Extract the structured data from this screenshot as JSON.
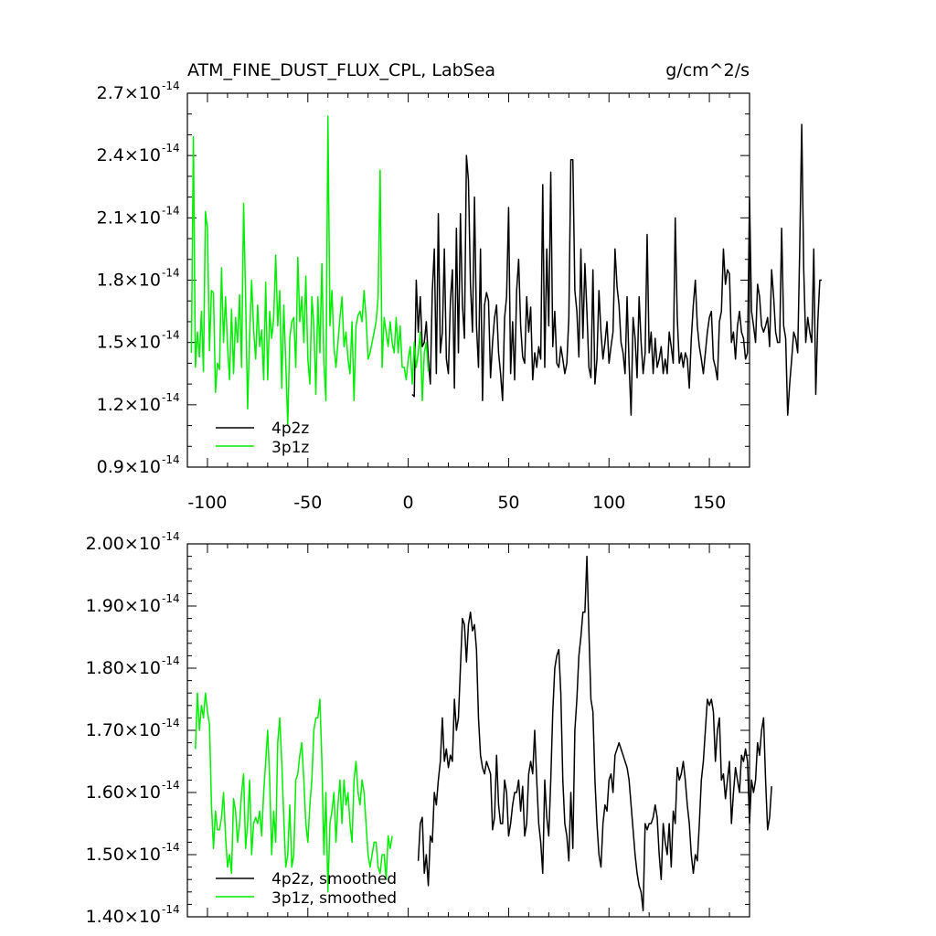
{
  "colors": {
    "series_a": "#000000",
    "series_b": "#00ee00",
    "axis": "#000000",
    "background": "#ffffff"
  },
  "chart_data": [
    {
      "type": "line",
      "title": "ATM_FINE_DUST_FLUX_CPL, LabSea",
      "units": "g/cm^2/s",
      "xlabel": "",
      "ylabel": "",
      "xlim": [
        -110,
        170
      ],
      "ylim": [
        9e-15,
        2.7e-14
      ],
      "grid": false,
      "legend_position": "bottom-left",
      "x_ticks": [
        {
          "value": -100,
          "label": "-100"
        },
        {
          "value": -50,
          "label": "-50"
        },
        {
          "value": 0,
          "label": "0"
        },
        {
          "value": 50,
          "label": "50"
        },
        {
          "value": 100,
          "label": "100"
        },
        {
          "value": 150,
          "label": "150"
        }
      ],
      "y_ticks": [
        {
          "value": 9e-15,
          "mantissa": "0.9",
          "exponent": "-14"
        },
        {
          "value": 1.2e-14,
          "mantissa": "1.2",
          "exponent": "-14"
        },
        {
          "value": 1.5e-14,
          "mantissa": "1.5",
          "exponent": "-14"
        },
        {
          "value": 1.8e-14,
          "mantissa": "1.8",
          "exponent": "-14"
        },
        {
          "value": 2.1e-14,
          "mantissa": "2.1",
          "exponent": "-14"
        },
        {
          "value": 2.4e-14,
          "mantissa": "2.4",
          "exponent": "-14"
        },
        {
          "value": 2.7e-14,
          "mantissa": "2.7",
          "exponent": "-14"
        }
      ],
      "series": [
        {
          "name": "4p2z",
          "color": "#000000",
          "x_start": 2,
          "x_step": 1,
          "values": [
            1.25e-14,
            1.24e-14,
            1.8e-14,
            1.55e-14,
            1.72e-14,
            1.48e-14,
            1.5e-14,
            1.6e-14,
            1.42e-14,
            1.3e-14,
            1.75e-14,
            1.95e-14,
            1.35e-14,
            2.12e-14,
            1.45e-14,
            1.55e-14,
            1.95e-14,
            1.42e-14,
            1.35e-14,
            1.7e-14,
            1.85e-14,
            1.28e-14,
            2.05e-14,
            1.45e-14,
            2.12e-14,
            1.68e-14,
            1.52e-14,
            2.4e-14,
            2.28e-14,
            1.78e-14,
            1.55e-14,
            2.2e-14,
            1.58e-14,
            1.38e-14,
            1.95e-14,
            1.22e-14,
            1.68e-14,
            1.74e-14,
            1.7e-14,
            1.33e-14,
            1.5e-14,
            1.62e-14,
            1.68e-14,
            1.45e-14,
            1.35e-14,
            1.22e-14,
            1.62e-14,
            1.72e-14,
            2.15e-14,
            1.35e-14,
            1.6e-14,
            1.32e-14,
            1.75e-14,
            1.9e-14,
            1.58e-14,
            1.43e-14,
            1.4e-14,
            1.72e-14,
            1.55e-14,
            1.67e-14,
            1.32e-14,
            1.45e-14,
            1.38e-14,
            1.48e-14,
            1.42e-14,
            2.26e-14,
            1.38e-14,
            1.95e-14,
            1.58e-14,
            2.32e-14,
            1.48e-14,
            1.65e-14,
            1.4e-14,
            1.38e-14,
            1.48e-14,
            1.42e-14,
            1.35e-14,
            1.4e-14,
            1.62e-14,
            2.38e-14,
            2.38e-14,
            1.75e-14,
            1.65e-14,
            1.43e-14,
            1.95e-14,
            1.52e-14,
            1.88e-14,
            1.65e-14,
            1.38e-14,
            1.33e-14,
            1.85e-14,
            1.3e-14,
            1.42e-14,
            1.75e-14,
            1.55e-14,
            1.42e-14,
            1.5e-14,
            1.6e-14,
            1.4e-14,
            1.48e-14,
            1.55e-14,
            1.95e-14,
            1.77e-14,
            1.68e-14,
            1.5e-14,
            1.45e-14,
            1.35e-14,
            1.72e-14,
            1.4e-14,
            1.15e-14,
            1.62e-14,
            1.52e-14,
            1.33e-14,
            1.72e-14,
            1.5e-14,
            1.35e-14,
            1.45e-14,
            2.02e-14,
            1.45e-14,
            1.55e-14,
            1.35e-14,
            1.52e-14,
            1.38e-14,
            1.42e-14,
            1.48e-14,
            1.35e-14,
            1.42e-14,
            1.35e-14,
            1.55e-14,
            1.48e-14,
            1.4e-14,
            2.1e-14,
            1.62e-14,
            1.4e-14,
            1.45e-14,
            1.38e-14,
            1.45e-14,
            1.42e-14,
            1.28e-14,
            1.52e-14,
            1.68e-14,
            1.8e-14,
            1.58e-14,
            1.48e-14,
            1.42e-14,
            1.35e-14,
            1.45e-14,
            1.55e-14,
            1.62e-14,
            1.65e-14,
            1.42e-14,
            1.38e-14,
            1.32e-14,
            1.6e-14,
            1.65e-14,
            1.95e-14,
            1.78e-14,
            1.85e-14,
            1.83e-14,
            1.5e-14,
            1.55e-14,
            1.42e-14,
            1.58e-14,
            1.65e-14,
            1.55e-14,
            1.52e-14,
            1.42e-14,
            1.45e-14,
            2.2e-14,
            1.65e-14,
            1.58e-14,
            1.5e-14,
            1.78e-14,
            1.72e-14,
            1.58e-14,
            1.55e-14,
            1.58e-14,
            1.62e-14,
            1.48e-14,
            1.85e-14,
            1.72e-14,
            1.55e-14,
            1.5e-14,
            1.5e-14,
            2.05e-14,
            1.58e-14,
            1.52e-14,
            1.15e-14,
            1.3e-14,
            1.42e-14,
            1.55e-14,
            1.52e-14,
            1.45e-14,
            1.95e-14,
            2.55e-14,
            1.85e-14,
            1.5e-14,
            1.62e-14,
            1.55e-14,
            1.5e-14,
            1.95e-14,
            1.25e-14,
            1.6e-14,
            1.8e-14,
            1.8e-14
          ]
        },
        {
          "name": "3p1z",
          "color": "#00ee00",
          "x_start": -108,
          "x_step": 1,
          "values": [
            1.45e-14,
            2.49e-14,
            1.38e-14,
            1.55e-14,
            1.43e-14,
            1.65e-14,
            1.36e-14,
            2.13e-14,
            2.05e-14,
            1.46e-14,
            1.75e-14,
            1.74e-14,
            1.26e-14,
            1.4e-14,
            1.37e-14,
            1.86e-14,
            1.5e-14,
            1.72e-14,
            1.48e-14,
            1.32e-14,
            1.66e-14,
            1.35e-14,
            1.62e-14,
            1.5e-14,
            1.73e-14,
            1.38e-14,
            2.17e-14,
            1.72e-14,
            1.18e-14,
            1.53e-14,
            1.8e-14,
            1.56e-14,
            1.42e-14,
            1.68e-14,
            1.48e-14,
            1.56e-14,
            1.32e-14,
            1.79e-14,
            1.32e-14,
            1.65e-14,
            1.52e-14,
            1.62e-14,
            1.92e-14,
            1.58e-14,
            1.75e-14,
            1.28e-14,
            1.68e-14,
            1.4e-14,
            1.1e-14,
            1.52e-14,
            1.6e-14,
            1.62e-14,
            1.38e-14,
            1.91e-14,
            1.6e-14,
            1.72e-14,
            1.5e-14,
            1.82e-14,
            1.42e-14,
            1.3e-14,
            1.72e-14,
            1.58e-14,
            1.25e-14,
            1.72e-14,
            1.45e-14,
            1.88e-14,
            1.4e-14,
            1.22e-14,
            2.59e-14,
            1.58e-14,
            1.75e-14,
            1.48e-14,
            1.38e-14,
            1.5e-14,
            1.62e-14,
            1.72e-14,
            1.48e-14,
            1.55e-14,
            1.42e-14,
            1.35e-14,
            1.6e-14,
            1.22e-14,
            1.58e-14,
            1.63e-14,
            1.65e-14,
            1.6e-14,
            1.75e-14,
            1.62e-14,
            1.42e-14,
            1.45e-14,
            1.5e-14,
            1.55e-14,
            1.6e-14,
            1.72e-14,
            2.33e-14,
            1.38e-14,
            1.62e-14,
            1.55e-14,
            1.48e-14,
            1.6e-14,
            1.5e-14,
            1.45e-14,
            1.62e-14,
            1.45e-14,
            1.58e-14,
            1.38e-14,
            1.38e-14,
            1.32e-14,
            1.42e-14,
            1.48e-14,
            1.3e-14,
            1.5e-14,
            1.38e-14,
            1.45e-14,
            1.55e-14,
            1.22e-14,
            1.45e-14,
            1.5e-14,
            1.36e-14
          ]
        }
      ]
    },
    {
      "type": "line",
      "title": "",
      "xlabel": "",
      "ylabel": "",
      "xlim": [
        -110,
        170
      ],
      "ylim": [
        1.4e-14,
        2e-14
      ],
      "grid": false,
      "legend_position": "bottom-left",
      "y_ticks": [
        {
          "value": 1.4e-14,
          "mantissa": "1.40",
          "exponent": "-14"
        },
        {
          "value": 1.5e-14,
          "mantissa": "1.50",
          "exponent": "-14"
        },
        {
          "value": 1.6e-14,
          "mantissa": "1.60",
          "exponent": "-14"
        },
        {
          "value": 1.7e-14,
          "mantissa": "1.70",
          "exponent": "-14"
        },
        {
          "value": 1.8e-14,
          "mantissa": "1.80",
          "exponent": "-14"
        },
        {
          "value": 1.9e-14,
          "mantissa": "1.90",
          "exponent": "-14"
        },
        {
          "value": 2e-14,
          "mantissa": "2.00",
          "exponent": "-14"
        }
      ],
      "series": [
        {
          "name": "4p2z, smoothed",
          "color": "#000000",
          "x_start": 5,
          "x_step": 1,
          "values": [
            1.49e-14,
            1.55e-14,
            1.56e-14,
            1.47e-14,
            1.5e-14,
            1.45e-14,
            1.53e-14,
            1.52e-14,
            1.6e-14,
            1.58e-14,
            1.62e-14,
            1.65e-14,
            1.72e-14,
            1.65e-14,
            1.67e-14,
            1.64e-14,
            1.66e-14,
            1.65e-14,
            1.75e-14,
            1.7e-14,
            1.72e-14,
            1.8e-14,
            1.88e-14,
            1.87e-14,
            1.81e-14,
            1.87e-14,
            1.89e-14,
            1.86e-14,
            1.87e-14,
            1.83e-14,
            1.72e-14,
            1.66e-14,
            1.64e-14,
            1.63e-14,
            1.65e-14,
            1.64e-14,
            1.63e-14,
            1.54e-14,
            1.56e-14,
            1.66e-14,
            1.58e-14,
            1.55e-14,
            1.55e-14,
            1.62e-14,
            1.6e-14,
            1.53e-14,
            1.55e-14,
            1.58e-14,
            1.6e-14,
            1.6e-14,
            1.62e-14,
            1.57e-14,
            1.61e-14,
            1.53e-14,
            1.55e-14,
            1.63e-14,
            1.65e-14,
            1.63e-14,
            1.7e-14,
            1.62e-14,
            1.55e-14,
            1.52e-14,
            1.47e-14,
            1.62e-14,
            1.56e-14,
            1.53e-14,
            1.62e-14,
            1.73e-14,
            1.8e-14,
            1.82e-14,
            1.83e-14,
            1.76e-14,
            1.62e-14,
            1.55e-14,
            1.53e-14,
            1.49e-14,
            1.6e-14,
            1.51e-14,
            1.7e-14,
            1.75e-14,
            1.82e-14,
            1.85e-14,
            1.89e-14,
            1.89e-14,
            1.98e-14,
            1.86e-14,
            1.75e-14,
            1.73e-14,
            1.62e-14,
            1.55e-14,
            1.5e-14,
            1.48e-14,
            1.55e-14,
            1.58e-14,
            1.57e-14,
            1.62e-14,
            1.63e-14,
            1.6e-14,
            1.66e-14,
            1.67e-14,
            1.68e-14,
            1.67e-14,
            1.66e-14,
            1.65e-14,
            1.64e-14,
            1.62e-14,
            1.58e-14,
            1.54e-14,
            1.5e-14,
            1.47e-14,
            1.45e-14,
            1.44e-14,
            1.41e-14,
            1.55e-14,
            1.54e-14,
            1.55e-14,
            1.55e-14,
            1.56e-14,
            1.58e-14,
            1.56e-14,
            1.5e-14,
            1.46e-14,
            1.55e-14,
            1.52e-14,
            1.5e-14,
            1.55e-14,
            1.48e-14,
            1.57e-14,
            1.55e-14,
            1.64e-14,
            1.62e-14,
            1.63e-14,
            1.65e-14,
            1.62e-14,
            1.58e-14,
            1.55e-14,
            1.5e-14,
            1.47e-14,
            1.5e-14,
            1.49e-14,
            1.55e-14,
            1.62e-14,
            1.65e-14,
            1.7e-14,
            1.75e-14,
            1.74e-14,
            1.75e-14,
            1.73e-14,
            1.65e-14,
            1.7e-14,
            1.72e-14,
            1.62e-14,
            1.63e-14,
            1.59e-14,
            1.62e-14,
            1.65e-14,
            1.55e-14,
            1.6e-14,
            1.64e-14,
            1.62e-14,
            1.6e-14,
            1.66e-14,
            1.65e-14,
            1.67e-14,
            1.65e-14,
            1.55e-14,
            1.62e-14,
            1.6e-14,
            1.62e-14,
            1.68e-14,
            1.66e-14,
            1.7e-14,
            1.72e-14,
            1.62e-14,
            1.54e-14,
            1.56e-14,
            1.61e-14
          ]
        },
        {
          "name": "3p1z, smoothed",
          "color": "#00ee00",
          "x_start": -106,
          "x_step": 1,
          "values": [
            1.67e-14,
            1.76e-14,
            1.7e-14,
            1.74e-14,
            1.72e-14,
            1.76e-14,
            1.73e-14,
            1.71e-14,
            1.58e-14,
            1.51e-14,
            1.57e-14,
            1.54e-14,
            1.54e-14,
            1.56e-14,
            1.6e-14,
            1.53e-14,
            1.48e-14,
            1.5e-14,
            1.47e-14,
            1.59e-14,
            1.57e-14,
            1.52e-14,
            1.55e-14,
            1.6e-14,
            1.63e-14,
            1.51e-14,
            1.55e-14,
            1.62e-14,
            1.5e-14,
            1.55e-14,
            1.56e-14,
            1.55e-14,
            1.57e-14,
            1.53e-14,
            1.6e-14,
            1.65e-14,
            1.7e-14,
            1.62e-14,
            1.5e-14,
            1.57e-14,
            1.52e-14,
            1.68e-14,
            1.72e-14,
            1.65e-14,
            1.56e-14,
            1.48e-14,
            1.5e-14,
            1.58e-14,
            1.48e-14,
            1.5e-14,
            1.62e-14,
            1.63e-14,
            1.66e-14,
            1.68e-14,
            1.62e-14,
            1.55e-14,
            1.52e-14,
            1.58e-14,
            1.62e-14,
            1.7e-14,
            1.72e-14,
            1.72e-14,
            1.75e-14,
            1.65e-14,
            1.5e-14,
            1.6e-14,
            1.44e-14,
            1.55e-14,
            1.57e-14,
            1.6e-14,
            1.52e-14,
            1.58e-14,
            1.62e-14,
            1.55e-14,
            1.62e-14,
            1.58e-14,
            1.6e-14,
            1.55e-14,
            1.52e-14,
            1.62e-14,
            1.65e-14,
            1.6e-14,
            1.58e-14,
            1.62e-14,
            1.6e-14,
            1.55e-14,
            1.5e-14,
            1.48e-14,
            1.5e-14,
            1.52e-14,
            1.52e-14,
            1.48e-14,
            1.47e-14,
            1.5e-14,
            1.5e-14,
            1.46e-14,
            1.53e-14,
            1.51e-14,
            1.53e-14
          ]
        }
      ]
    }
  ]
}
